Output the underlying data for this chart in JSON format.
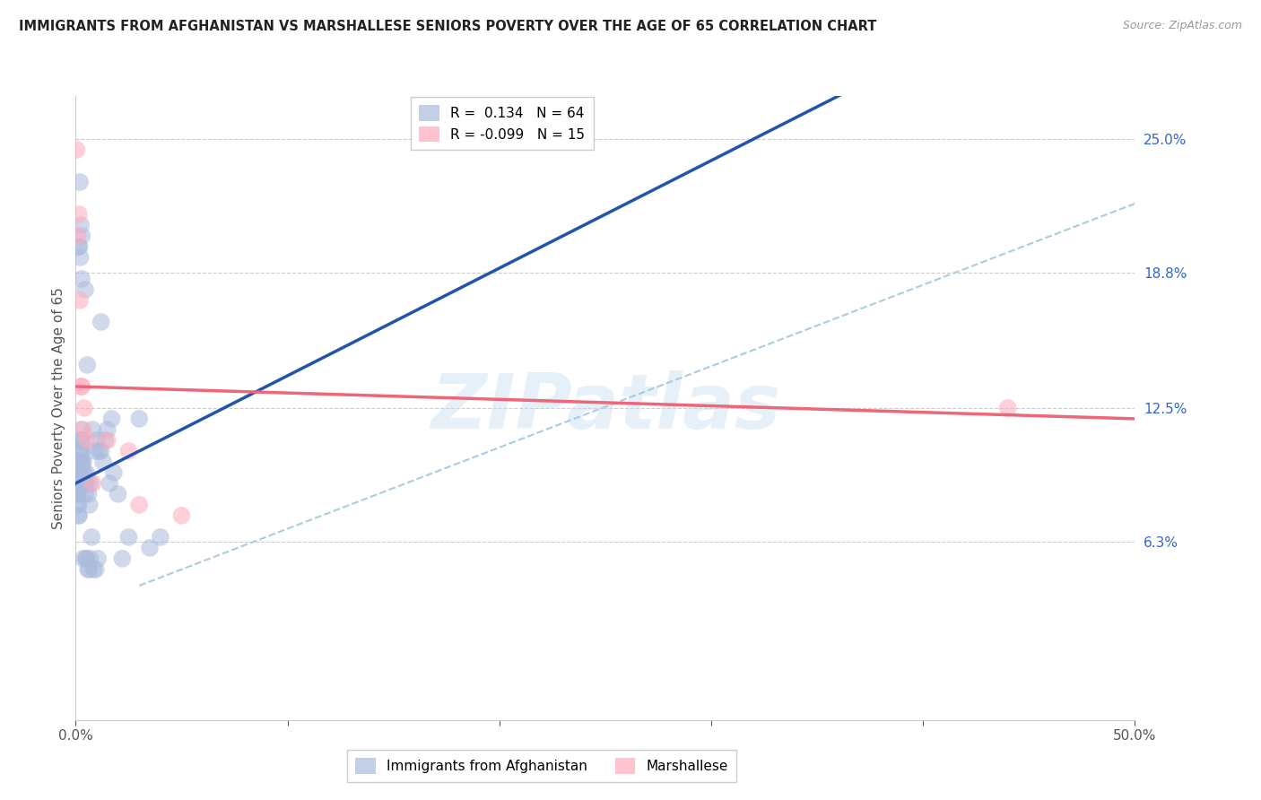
{
  "title": "IMMIGRANTS FROM AFGHANISTAN VS MARSHALLESE SENIORS POVERTY OVER THE AGE OF 65 CORRELATION CHART",
  "source": "Source: ZipAtlas.com",
  "ylabel": "Seniors Poverty Over the Age of 65",
  "xlim": [
    0.0,
    50.0
  ],
  "ylim": [
    -2.0,
    27.0
  ],
  "x_ticks": [
    0.0,
    10.0,
    20.0,
    30.0,
    40.0,
    50.0
  ],
  "x_tick_labels": [
    "0.0%",
    "",
    "",
    "",
    "",
    "50.0%"
  ],
  "y_ticks": [
    6.3,
    12.5,
    18.8,
    25.0
  ],
  "y_tick_labels": [
    "6.3%",
    "12.5%",
    "18.8%",
    "25.0%"
  ],
  "blue_R": 0.134,
  "blue_N": 64,
  "pink_R": -0.099,
  "pink_N": 15,
  "blue_color": "#aabbdd",
  "pink_color": "#ffaabb",
  "blue_line_color": "#2255aa",
  "pink_line_color": "#ee6677",
  "dash_line_color": "#aaccdd",
  "background_color": "#ffffff",
  "watermark": "ZIPatlas",
  "blue_x": [
    0.05,
    0.07,
    0.08,
    0.09,
    0.1,
    0.11,
    0.12,
    0.13,
    0.14,
    0.15,
    0.16,
    0.17,
    0.18,
    0.19,
    0.2,
    0.21,
    0.22,
    0.23,
    0.24,
    0.25,
    0.26,
    0.27,
    0.28,
    0.3,
    0.32,
    0.34,
    0.36,
    0.38,
    0.4,
    0.42,
    0.44,
    0.46,
    0.5,
    0.55,
    0.6,
    0.65,
    0.7,
    0.8,
    0.9,
    1.0,
    1.1,
    1.2,
    1.3,
    1.4,
    1.5,
    1.6,
    1.8,
    2.0,
    2.2,
    2.5,
    3.0,
    3.5,
    4.0,
    1.7,
    0.35,
    0.48,
    0.53,
    0.58,
    0.63,
    0.68,
    0.75,
    0.85,
    0.95,
    1.05
  ],
  "blue_y": [
    9.5,
    9.0,
    8.5,
    8.5,
    9.0,
    8.0,
    8.0,
    8.5,
    7.5,
    7.5,
    9.5,
    9.0,
    9.0,
    11.0,
    10.0,
    10.5,
    10.0,
    9.5,
    10.5,
    11.5,
    11.0,
    11.0,
    10.0,
    10.5,
    10.0,
    9.5,
    10.0,
    9.0,
    9.5,
    9.0,
    9.0,
    8.5,
    9.5,
    9.0,
    8.5,
    8.0,
    9.0,
    11.5,
    10.5,
    11.0,
    10.5,
    10.5,
    10.0,
    11.0,
    11.5,
    9.0,
    9.5,
    8.5,
    5.5,
    6.5,
    12.0,
    6.0,
    6.5,
    12.0,
    5.5,
    5.5,
    5.5,
    5.0,
    5.0,
    5.5,
    6.5,
    5.0,
    5.0,
    5.5
  ],
  "blue_x_high": [
    0.2,
    0.25,
    0.3,
    0.18,
    0.22,
    0.28,
    0.15,
    0.45,
    0.55,
    1.2
  ],
  "blue_y_high": [
    23.0,
    21.0,
    20.5,
    20.0,
    19.5,
    18.5,
    20.0,
    18.0,
    14.5,
    16.5
  ],
  "pink_x": [
    0.05,
    0.1,
    0.15,
    0.2,
    0.25,
    0.3,
    0.4,
    0.55,
    0.8,
    1.5,
    2.5,
    3.0,
    5.0,
    0.35,
    44.0
  ],
  "pink_y": [
    24.5,
    20.5,
    21.5,
    17.5,
    13.5,
    13.5,
    12.5,
    11.0,
    9.0,
    11.0,
    10.5,
    8.0,
    7.5,
    11.5,
    12.5
  ],
  "blue_trend_x0": 0.0,
  "blue_trend_y0": 9.0,
  "blue_trend_x1": 8.0,
  "blue_trend_y1": 13.0,
  "pink_trend_x0": 0.0,
  "pink_trend_y0": 13.5,
  "pink_trend_x1": 50.0,
  "pink_trend_y1": 12.0,
  "dash_trend_x0": 5.0,
  "dash_trend_y0": 5.0,
  "dash_trend_x1": 50.0,
  "dash_trend_y1": 22.0
}
